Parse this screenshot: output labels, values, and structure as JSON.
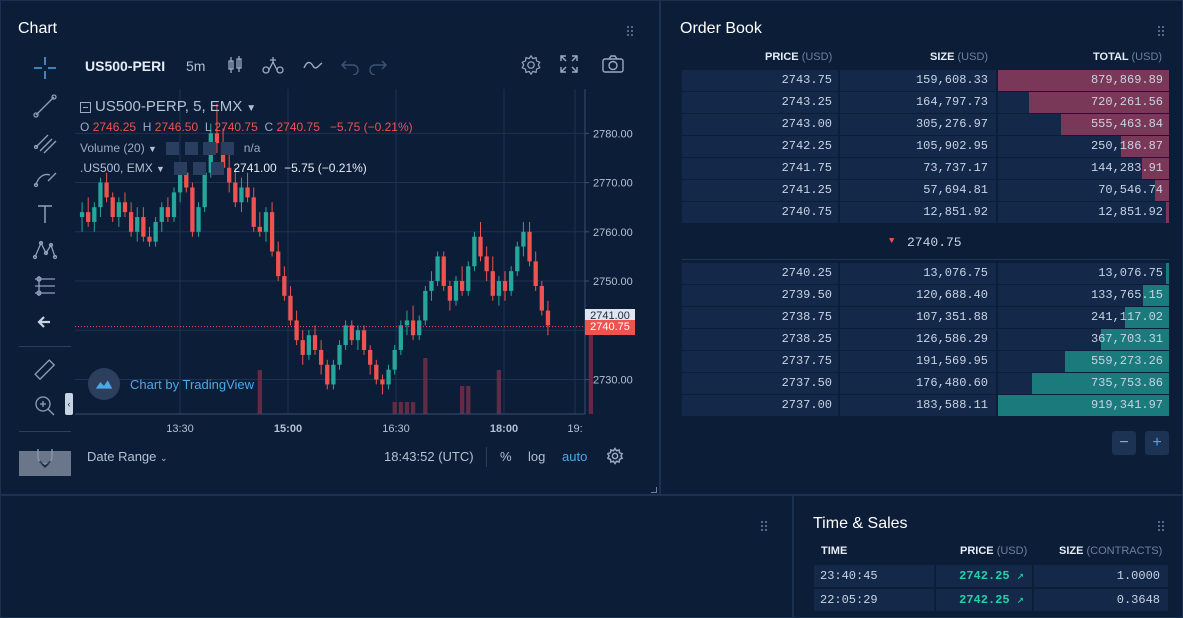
{
  "chart_panel": {
    "title": "Chart",
    "symbol_short": "US500-PERI",
    "interval": "5m",
    "legend": {
      "series_title": "US500-PERP, 5, EMX",
      "o_label": "O",
      "o_value": "2746.25",
      "h_label": "H",
      "h_value": "2746.50",
      "l_label": "L",
      "l_value": "2740.75",
      "c_label": "C",
      "c_value": "2740.75",
      "change": "−5.75 (−0.21%)",
      "volume_label": "Volume (20)",
      "volume_value": "n/a",
      "compare_label": ".US500, EMX",
      "compare_value": "2741.00",
      "compare_change": "−5.75 (−0.21%)"
    },
    "watermark": "Chart by TradingView",
    "price_axis_labels": [
      "2780.00",
      "2770.00",
      "2760.00",
      "2750.00",
      "2740.00",
      "2730.00"
    ],
    "time_axis_labels": [
      "13:30",
      "15:00",
      "16:30",
      "18:00",
      "19:"
    ],
    "price_tag_compare": "2741.00",
    "price_tag_last": "2740.75",
    "footer": {
      "date_range": "Date Range",
      "clock": "18:43:52 (UTC)",
      "percent": "%",
      "log": "log",
      "auto": "auto"
    },
    "colors": {
      "up": "#26a69a",
      "down": "#ef5350",
      "bg": "#0b1d37"
    }
  },
  "chart_data": {
    "type": "candlestick",
    "ylim": [
      2723,
      2789
    ],
    "x_ticks": [
      "13:30",
      "15:00",
      "16:30",
      "18:00",
      "19:"
    ],
    "y_ticks": [
      2730,
      2740,
      2750,
      2760,
      2770,
      2780
    ],
    "candles": [
      [
        2763,
        2766,
        2760,
        2764
      ],
      [
        2764,
        2767,
        2761,
        2762
      ],
      [
        2762,
        2766,
        2760,
        2765
      ],
      [
        2765,
        2771,
        2763,
        2770
      ],
      [
        2770,
        2772,
        2766,
        2767
      ],
      [
        2767,
        2768,
        2762,
        2763
      ],
      [
        2763,
        2767,
        2761,
        2766
      ],
      [
        2766,
        2768,
        2763,
        2764
      ],
      [
        2764,
        2766,
        2759,
        2760
      ],
      [
        2760,
        2765,
        2758,
        2763
      ],
      [
        2763,
        2765,
        2758,
        2759
      ],
      [
        2759,
        2761,
        2757,
        2758
      ],
      [
        2758,
        2763,
        2757,
        2762
      ],
      [
        2762,
        2766,
        2760,
        2765
      ],
      [
        2765,
        2767,
        2762,
        2763
      ],
      [
        2763,
        2769,
        2762,
        2768
      ],
      [
        2768,
        2773,
        2766,
        2772
      ],
      [
        2772,
        2774,
        2768,
        2769
      ],
      [
        2769,
        2770,
        2759,
        2760
      ],
      [
        2760,
        2766,
        2759,
        2765
      ],
      [
        2765,
        2773,
        2764,
        2772
      ],
      [
        2772,
        2782,
        2771,
        2780
      ],
      [
        2780,
        2786,
        2776,
        2778
      ],
      [
        2778,
        2781,
        2772,
        2773
      ],
      [
        2773,
        2776,
        2768,
        2770
      ],
      [
        2770,
        2773,
        2765,
        2766
      ],
      [
        2766,
        2771,
        2764,
        2769
      ],
      [
        2769,
        2772,
        2766,
        2767
      ],
      [
        2767,
        2769,
        2760,
        2761
      ],
      [
        2761,
        2764,
        2759,
        2760
      ],
      [
        2760,
        2765,
        2758,
        2764
      ],
      [
        2764,
        2766,
        2755,
        2756
      ],
      [
        2756,
        2758,
        2750,
        2751
      ],
      [
        2751,
        2753,
        2746,
        2747
      ],
      [
        2747,
        2749,
        2741,
        2742
      ],
      [
        2742,
        2744,
        2737,
        2738
      ],
      [
        2738,
        2740,
        2733,
        2735
      ],
      [
        2735,
        2740,
        2734,
        2739
      ],
      [
        2739,
        2741,
        2735,
        2736
      ],
      [
        2736,
        2738,
        2731,
        2733
      ],
      [
        2733,
        2734,
        2728,
        2729
      ],
      [
        2729,
        2734,
        2728,
        2733
      ],
      [
        2733,
        2738,
        2732,
        2737
      ],
      [
        2737,
        2742,
        2736,
        2741
      ],
      [
        2741,
        2742,
        2737,
        2738
      ],
      [
        2738,
        2741,
        2736,
        2740
      ],
      [
        2740,
        2741,
        2735,
        2736
      ],
      [
        2736,
        2737,
        2731,
        2733
      ],
      [
        2733,
        2734,
        2729,
        2730
      ],
      [
        2730,
        2731,
        2727,
        2729
      ],
      [
        2729,
        2733,
        2728,
        2732
      ],
      [
        2732,
        2737,
        2731,
        2736
      ],
      [
        2736,
        2742,
        2735,
        2741
      ],
      [
        2741,
        2744,
        2739,
        2742
      ],
      [
        2742,
        2745,
        2738,
        2739
      ],
      [
        2739,
        2743,
        2738,
        2742
      ],
      [
        2742,
        2749,
        2741,
        2748
      ],
      [
        2748,
        2752,
        2746,
        2750
      ],
      [
        2750,
        2756,
        2749,
        2755
      ],
      [
        2755,
        2756,
        2748,
        2749
      ],
      [
        2749,
        2750,
        2744,
        2746
      ],
      [
        2746,
        2751,
        2745,
        2750
      ],
      [
        2750,
        2753,
        2747,
        2748
      ],
      [
        2748,
        2754,
        2747,
        2753
      ],
      [
        2753,
        2760,
        2752,
        2759
      ],
      [
        2759,
        2762,
        2754,
        2755
      ],
      [
        2755,
        2757,
        2750,
        2752
      ],
      [
        2752,
        2755,
        2746,
        2747
      ],
      [
        2747,
        2751,
        2745,
        2750
      ],
      [
        2750,
        2752,
        2746,
        2748
      ],
      [
        2748,
        2753,
        2747,
        2752
      ],
      [
        2752,
        2758,
        2751,
        2757
      ],
      [
        2757,
        2762,
        2755,
        2760
      ],
      [
        2760,
        2762,
        2753,
        2754
      ],
      [
        2754,
        2756,
        2748,
        2749
      ],
      [
        2749,
        2750,
        2743,
        2744
      ],
      [
        2744,
        2746,
        2739,
        2741
      ]
    ],
    "volume_bars": [
      {
        "index": 29,
        "level": 0.55
      },
      {
        "index": 51,
        "level": 0.15
      },
      {
        "index": 52,
        "level": 0.15
      },
      {
        "index": 53,
        "level": 0.15
      },
      {
        "index": 54,
        "level": 0.15
      },
      {
        "index": 56,
        "level": 0.7
      },
      {
        "index": 62,
        "level": 0.35
      },
      {
        "index": 63,
        "level": 0.35
      },
      {
        "index": 68,
        "level": 0.55
      },
      {
        "index": 83,
        "level": 1.0
      }
    ],
    "last_price": 2740.75,
    "compare_price": 2741.0
  },
  "order_book": {
    "title": "Order Book",
    "headers": {
      "price": "PRICE",
      "price_unit": "(USD)",
      "size": "SIZE",
      "size_unit": "(USD)",
      "total": "TOTAL",
      "total_unit": "(USD)"
    },
    "asks": [
      {
        "price": "2743.75",
        "size": "159,608.33",
        "total": "879,869.89",
        "depth": 1.0
      },
      {
        "price": "2743.25",
        "size": "164,797.73",
        "total": "720,261.56",
        "depth": 0.82
      },
      {
        "price": "2743.00",
        "size": "305,276.97",
        "total": "555,463.84",
        "depth": 0.63
      },
      {
        "price": "2742.25",
        "size": "105,902.95",
        "total": "250,186.87",
        "depth": 0.28
      },
      {
        "price": "2741.75",
        "size": "73,737.17",
        "total": "144,283.91",
        "depth": 0.16
      },
      {
        "price": "2741.25",
        "size": "57,694.81",
        "total": "70,546.74",
        "depth": 0.08
      },
      {
        "price": "2740.75",
        "size": "12,851.92",
        "total": "12,851.92",
        "depth": 0.015
      }
    ],
    "mid_price": "2740.75",
    "bids": [
      {
        "price": "2740.25",
        "size": "13,076.75",
        "total": "13,076.75",
        "depth": 0.015
      },
      {
        "price": "2739.50",
        "size": "120,688.40",
        "total": "133,765.15",
        "depth": 0.15
      },
      {
        "price": "2738.75",
        "size": "107,351.88",
        "total": "241,117.02",
        "depth": 0.26
      },
      {
        "price": "2738.25",
        "size": "126,586.29",
        "total": "367,703.31",
        "depth": 0.4
      },
      {
        "price": "2737.75",
        "size": "191,569.95",
        "total": "559,273.26",
        "depth": 0.61
      },
      {
        "price": "2737.50",
        "size": "176,480.60",
        "total": "735,753.86",
        "depth": 0.8
      },
      {
        "price": "2737.00",
        "size": "183,588.11",
        "total": "919,341.97",
        "depth": 1.0
      }
    ],
    "zoom_out": "−",
    "zoom_in": "+"
  },
  "time_sales": {
    "title": "Time & Sales",
    "headers": {
      "time": "TIME",
      "price": "PRICE",
      "price_unit": "(USD)",
      "size": "SIZE",
      "size_unit": "(CONTRACTS)"
    },
    "rows": [
      {
        "time": "23:40:45",
        "price": "2742.25",
        "size": "1.0000"
      },
      {
        "time": "22:05:29",
        "price": "2742.25",
        "size": "0.3648"
      }
    ]
  }
}
